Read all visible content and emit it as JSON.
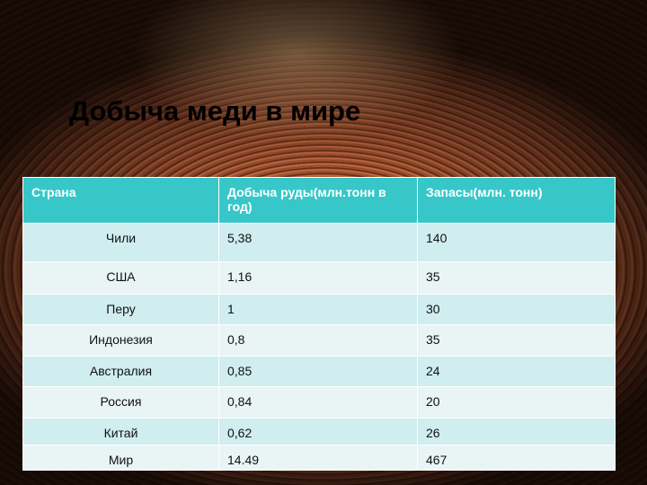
{
  "title": "Добыча меди в мире",
  "table": {
    "header": [
      "Страна",
      "Добыча руды(млн.тонн в год)",
      "Запасы(млн. тонн)"
    ],
    "rows": [
      [
        "Чили",
        "5,38",
        "140"
      ],
      [
        "США",
        "1,16",
        "35"
      ],
      [
        "Перу",
        "1",
        "30"
      ],
      [
        "Индонезия",
        "0,8",
        "35"
      ],
      [
        "Австралия",
        "0,85",
        "24"
      ],
      [
        "Россия",
        "0,84",
        "20"
      ],
      [
        "Китай",
        "0,62",
        "26"
      ],
      [
        "Мир",
        "14.49",
        "467"
      ]
    ]
  }
}
